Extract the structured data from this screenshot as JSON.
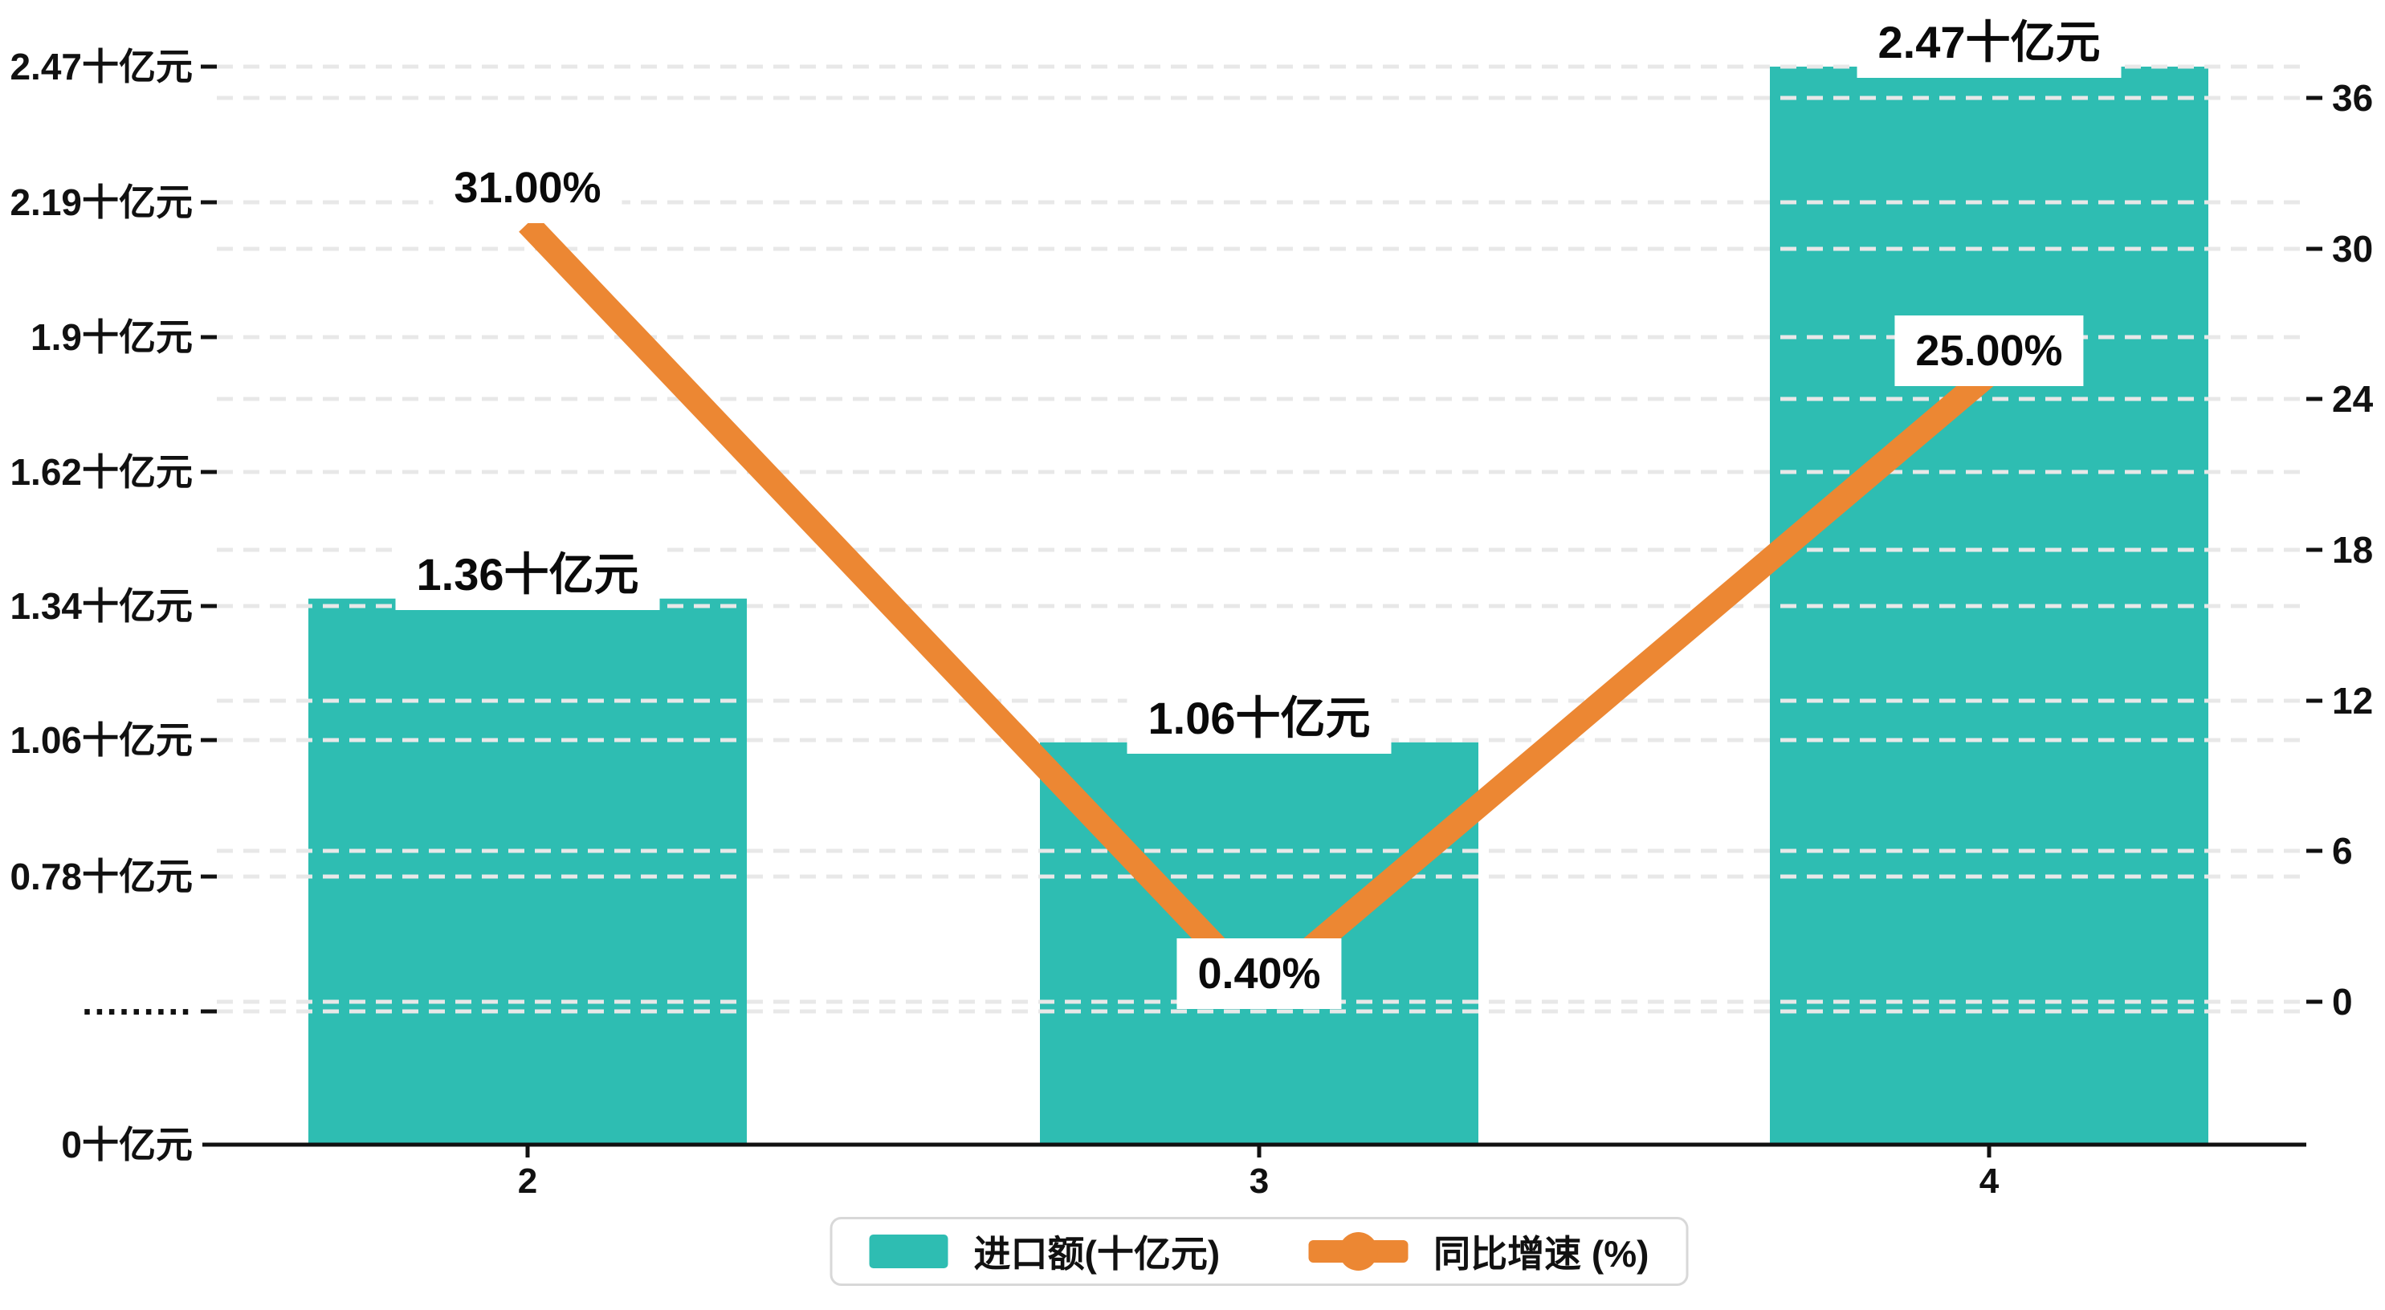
{
  "chart_data": {
    "type": "bar+line",
    "title": "",
    "xlabel": "",
    "categories": [
      "2",
      "3",
      "4"
    ],
    "series": [
      {
        "name": "进口额(十亿元)",
        "type": "bar",
        "axis": "left",
        "unit": "十亿元",
        "color": "#2EBDB2",
        "values": [
          1.36,
          1.06,
          2.47
        ],
        "data_labels": [
          "1.36十亿元",
          "1.06十亿元",
          "2.47十亿元"
        ]
      },
      {
        "name": "同比增速 (%)",
        "type": "line",
        "axis": "right",
        "unit": "%",
        "color": "#EC8733",
        "values": [
          31.0,
          0.4,
          25.0
        ],
        "data_labels": [
          "31.00%",
          "0.40%",
          "25.00%"
        ]
      }
    ],
    "left_axis": {
      "tick_labels": [
        "2.47十亿元",
        "2.19十亿元",
        "1.9十亿元",
        "1.62十亿元",
        "1.34十亿元",
        "1.06十亿元",
        "0.78十亿元",
        "·········",
        "0十亿元"
      ],
      "broken_axis_marker": "·········",
      "value_range_shown": [
        0.78,
        2.47
      ],
      "zero_label": "0十亿元"
    },
    "right_axis": {
      "tick_labels": [
        "36",
        "30",
        "24",
        "18",
        "12",
        "6",
        "0"
      ],
      "range": [
        0,
        36
      ]
    },
    "grid": "horizontal dashed gridlines for both left and right axis ticks",
    "legend_position": "bottom-center"
  },
  "legend": {
    "items": [
      {
        "label": "进口额(十亿元)",
        "color": "#2EBDB2",
        "marker": "rect"
      },
      {
        "label": "同比增速 (%)",
        "color": "#EC8733",
        "marker": "line-dot"
      }
    ]
  },
  "colors": {
    "bar": "#2EBDB2",
    "line": "#EC8733",
    "gridline": "#E8E8E8",
    "axis": "#111111",
    "background": "#FFFFFF",
    "legend_border": "#D8D8D8"
  }
}
